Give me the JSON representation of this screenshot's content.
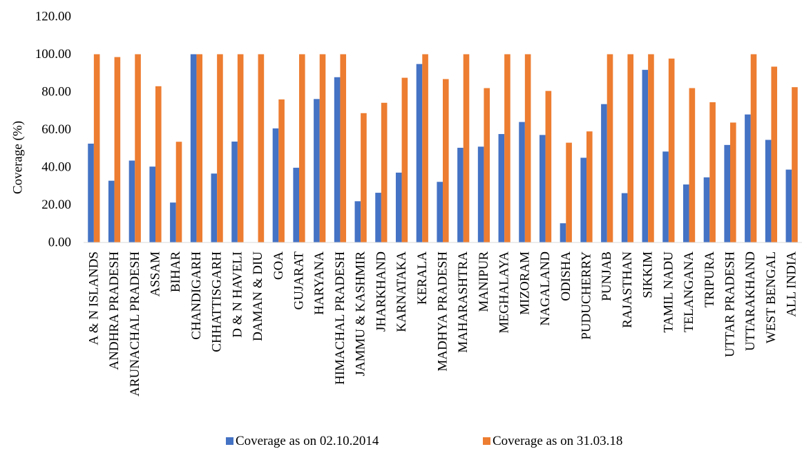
{
  "chart_data": {
    "type": "bar",
    "ylabel": "Coverage (%)",
    "xlabel": "",
    "title": "",
    "ylim": [
      0,
      120
    ],
    "yticks": [
      "0.00",
      "20.00",
      "40.00",
      "60.00",
      "80.00",
      "100.00",
      "120.00"
    ],
    "grid": false,
    "legend_position": "bottom",
    "categories": [
      "A & N ISLANDS",
      "ANDHRA PRADESH",
      "ARUNACHAL PRADESH",
      "ASSAM",
      "BIHAR",
      "CHANDIGARH",
      "CHHATTISGARH",
      "D & N HAVELI",
      "DAMAN & DIU",
      "GOA",
      "GUJARAT",
      "HARYANA",
      "HIMACHAL PRADESH",
      "JAMMU & KASHMIR",
      "JHARKHAND",
      "KARNATAKA",
      "KERALA",
      "MADHYA PRADESH",
      "MAHARASHTRA",
      "MANIPUR",
      "MEGHALAYA",
      "MIZORAM",
      "NAGALAND",
      "ODISHA",
      "PUDUCHERRY",
      "PUNJAB",
      "RAJASTHAN",
      "SIKKIM",
      "TAMIL NADU",
      "TELANGANA",
      "TRIPURA",
      "UTTAR PRADESH",
      "UTTARAKHAND",
      "WEST BENGAL",
      "ALL INDIA"
    ],
    "series": [
      {
        "name": "Coverage as on 02.10.2014",
        "color": "#4472C4",
        "values": [
          52.5,
          32.8,
          43.5,
          40.3,
          21.2,
          100,
          36.6,
          53.6,
          0,
          60.6,
          39.7,
          76.2,
          87.8,
          21.9,
          26.4,
          37.1,
          94.8,
          32.2,
          50.3,
          50.9,
          57.6,
          64.0,
          57.1,
          10.2,
          45.0,
          73.5,
          26.2,
          91.7,
          48.3,
          30.8,
          34.6,
          51.8,
          68.0,
          54.5,
          38.7
        ]
      },
      {
        "name": "Coverage as on 31.03.18",
        "color": "#ED7D31",
        "values": [
          100,
          98.5,
          100,
          83.0,
          53.5,
          100,
          100,
          100,
          100,
          76.0,
          100,
          100,
          100,
          68.7,
          74.2,
          87.5,
          100,
          86.8,
          100,
          82.0,
          100,
          100,
          80.5,
          53.0,
          59.0,
          100,
          100,
          100,
          97.7,
          82.0,
          74.5,
          63.7,
          100,
          93.4,
          82.5
        ]
      }
    ]
  }
}
